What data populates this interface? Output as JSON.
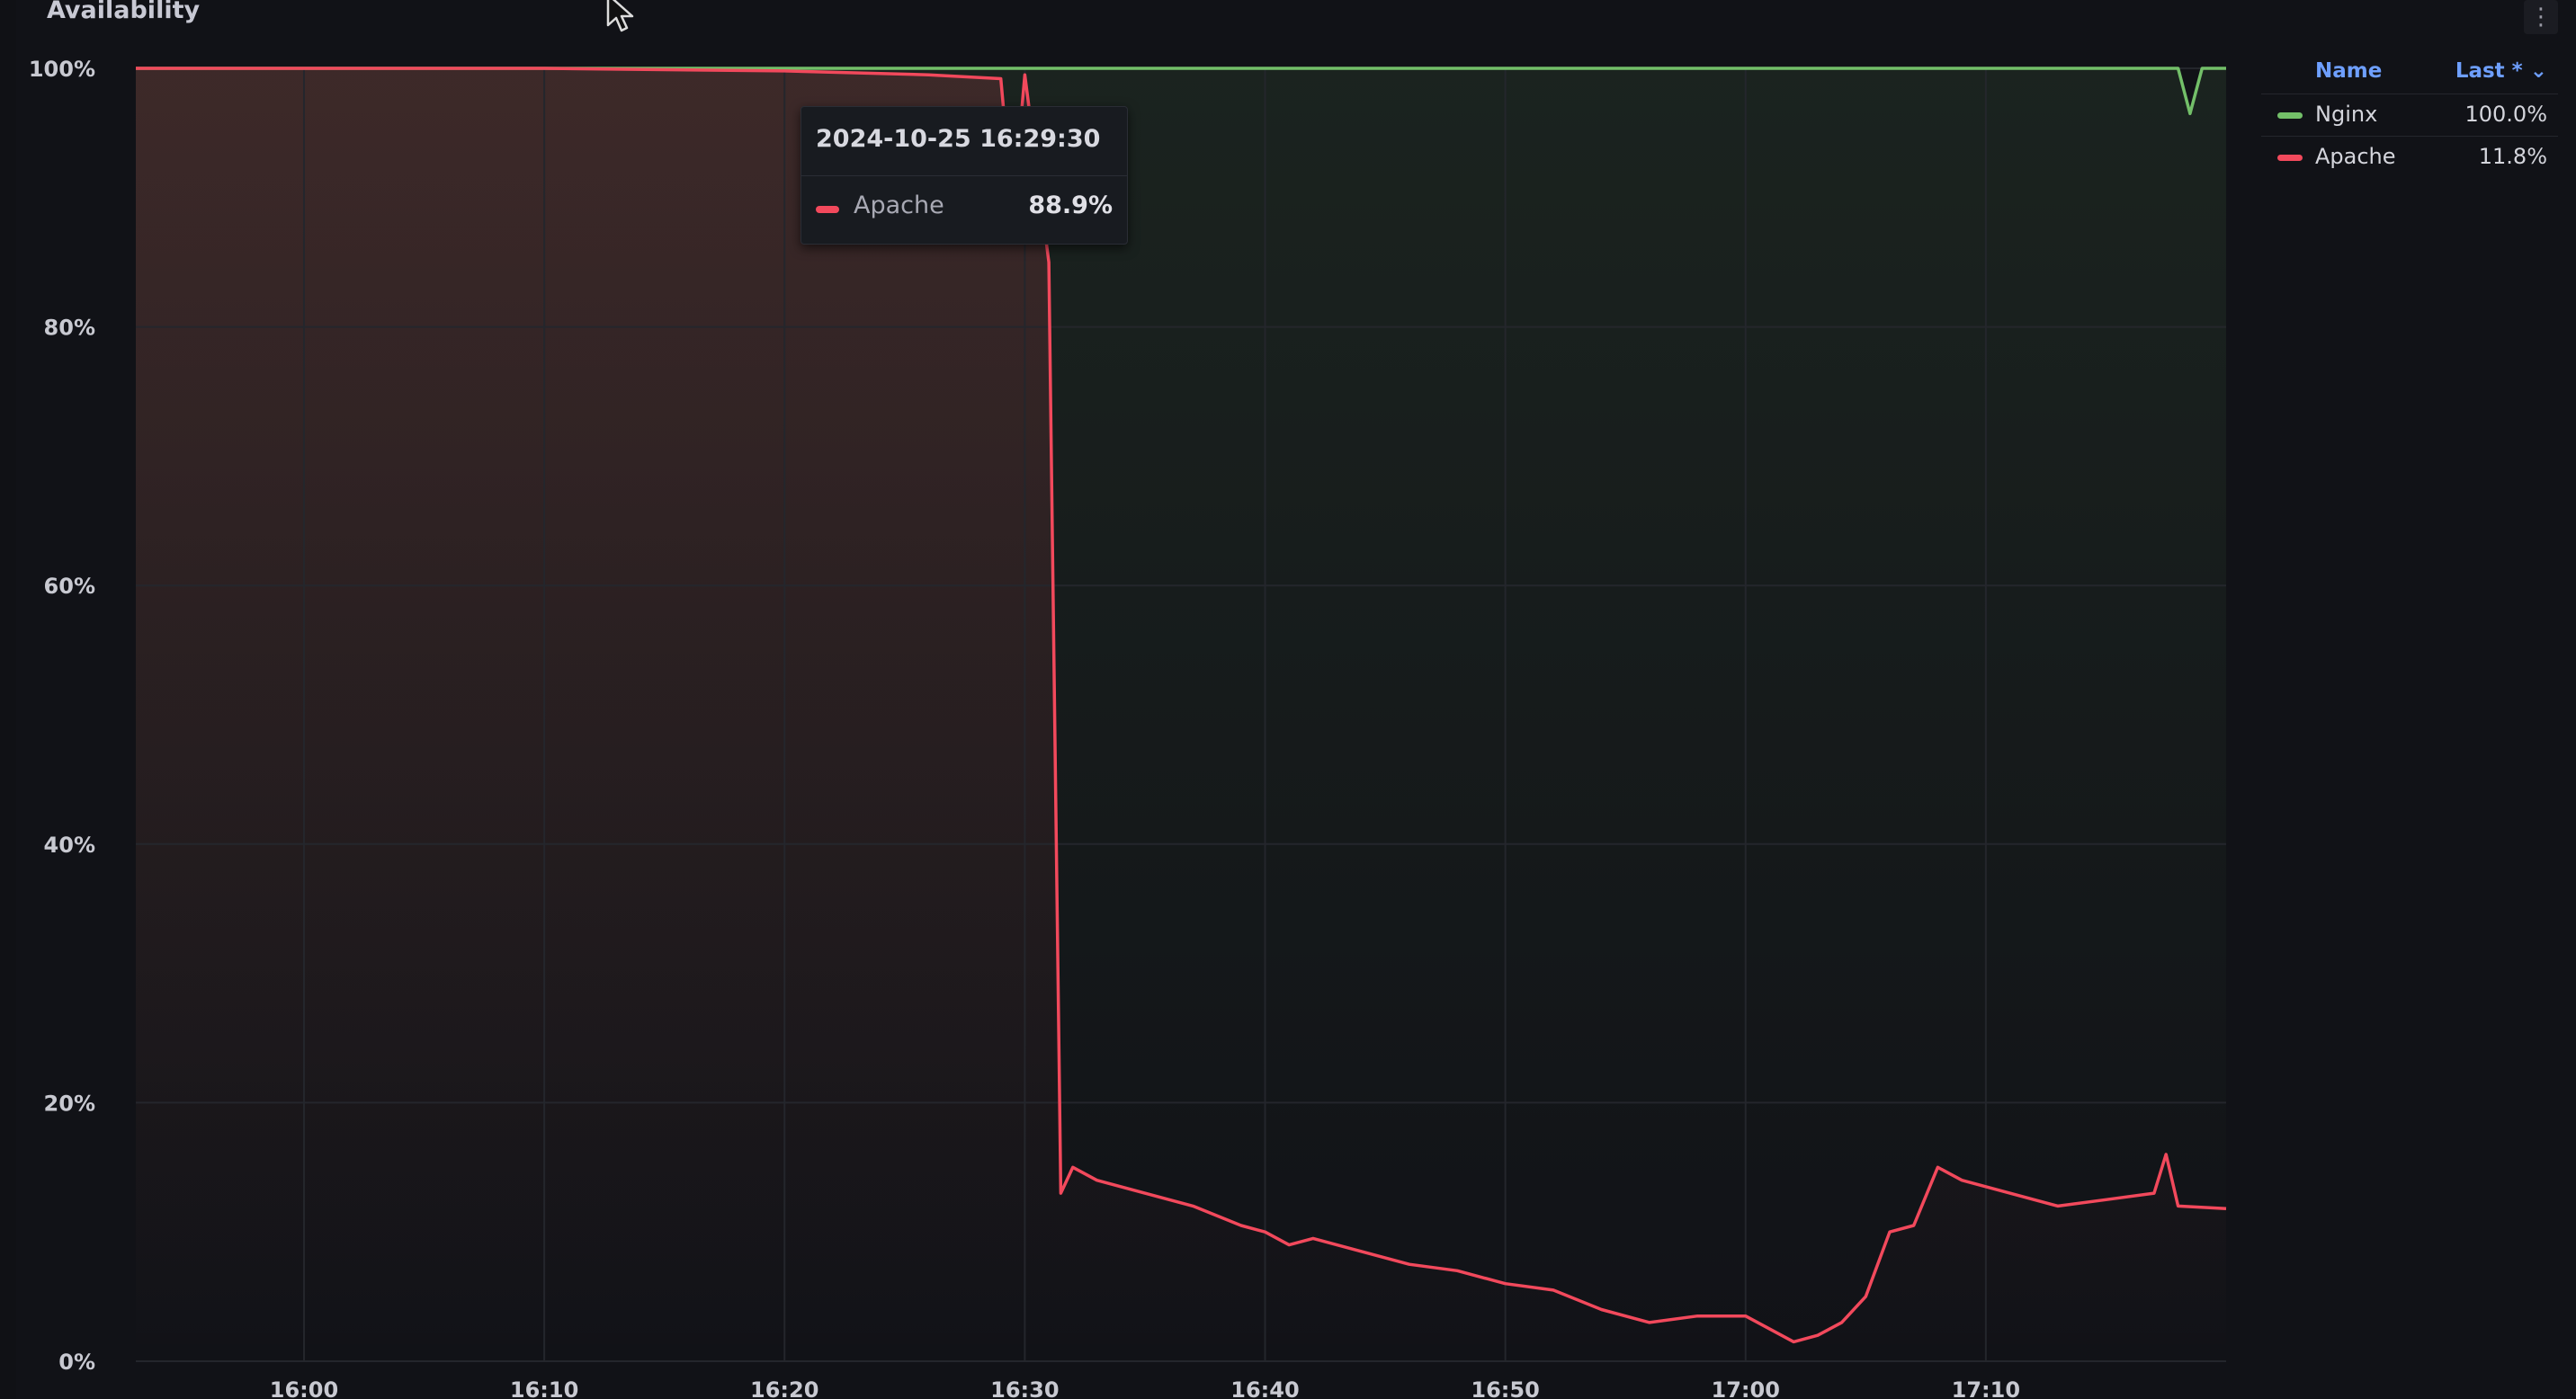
{
  "panel": {
    "title": "Availability",
    "menu_icon": "vertical-ellipsis-icon"
  },
  "tooltip": {
    "time": "2024-10-25 16:29:30",
    "series": "Apache",
    "value": "88.9%",
    "color": "#f2495c"
  },
  "legend": {
    "header_name": "Name",
    "header_last": "Last * ⌄",
    "items": [
      {
        "name": "Nginx",
        "last": "100.0%",
        "color": "#73bf69"
      },
      {
        "name": "Apache",
        "last": "11.8%",
        "color": "#f2495c"
      }
    ]
  },
  "chart_data": {
    "type": "line",
    "title": "Availability",
    "ylim": [
      0,
      100
    ],
    "y_ticks": [
      "0%",
      "20%",
      "40%",
      "60%",
      "80%",
      "100%"
    ],
    "x_ticks": [
      "16:00",
      "16:10",
      "16:20",
      "16:30",
      "16:40",
      "16:50",
      "17:00",
      "17:10"
    ],
    "grid": true,
    "legend_position": "right",
    "series": [
      {
        "name": "Nginx",
        "color": "#73bf69",
        "points": [
          [
            "15:53",
            100
          ],
          [
            "16:07",
            100
          ],
          [
            "16:27",
            100
          ],
          [
            "16:40",
            100
          ],
          [
            "16:50",
            100
          ],
          [
            "17:00",
            100
          ],
          [
            "17:10",
            100
          ],
          [
            "17:18",
            100
          ],
          [
            "17:18:30",
            96.5
          ],
          [
            "17:19",
            100
          ],
          [
            "17:20",
            100
          ]
        ]
      },
      {
        "name": "Apache",
        "color": "#f2495c",
        "points": [
          [
            "15:53",
            100
          ],
          [
            "16:10",
            100
          ],
          [
            "16:20",
            99.8
          ],
          [
            "16:26",
            99.5
          ],
          [
            "16:29",
            99.2
          ],
          [
            "16:29:30",
            88.9
          ],
          [
            "16:30",
            99.5
          ],
          [
            "16:31",
            85
          ],
          [
            "16:31:30",
            13
          ],
          [
            "16:32",
            15
          ],
          [
            "16:33",
            14
          ],
          [
            "16:35",
            13
          ],
          [
            "16:37",
            12
          ],
          [
            "16:39",
            10.5
          ],
          [
            "16:40",
            10
          ],
          [
            "16:41",
            9
          ],
          [
            "16:42",
            9.5
          ],
          [
            "16:44",
            8.5
          ],
          [
            "16:46",
            7.5
          ],
          [
            "16:48",
            7
          ],
          [
            "16:50",
            6
          ],
          [
            "16:52",
            5.5
          ],
          [
            "16:54",
            4
          ],
          [
            "16:56",
            3
          ],
          [
            "16:58",
            3.5
          ],
          [
            "17:00",
            3.5
          ],
          [
            "17:02",
            1.5
          ],
          [
            "17:03",
            2
          ],
          [
            "17:04",
            3
          ],
          [
            "17:05",
            5
          ],
          [
            "17:06",
            10
          ],
          [
            "17:07",
            10.5
          ],
          [
            "17:08",
            15
          ],
          [
            "17:09",
            14
          ],
          [
            "17:11",
            13
          ],
          [
            "17:13",
            12
          ],
          [
            "17:15",
            12.5
          ],
          [
            "17:17",
            13
          ],
          [
            "17:17:30",
            16
          ],
          [
            "17:18",
            12
          ],
          [
            "17:20",
            11.8
          ]
        ]
      }
    ]
  }
}
